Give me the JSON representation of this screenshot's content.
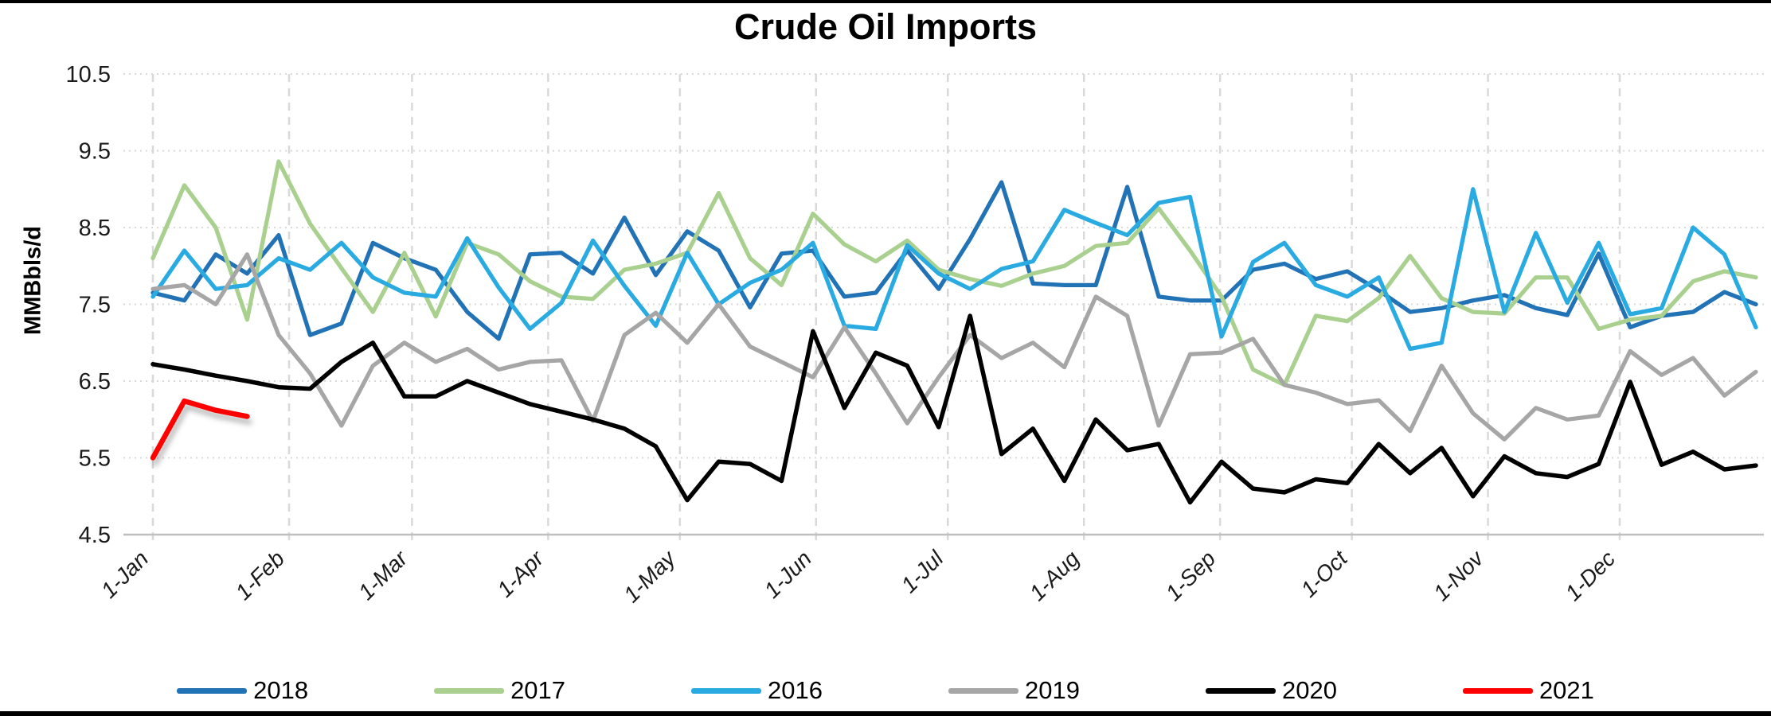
{
  "chart_data": {
    "type": "line",
    "title": "Crude Oil Imports",
    "ylabel": "MMBbls/d",
    "ylim": [
      4.5,
      10.5
    ],
    "yticks": [
      10.5,
      9.5,
      8.5,
      7.5,
      6.5,
      5.5,
      4.5
    ],
    "xticklabels": [
      "1-Jan",
      "1-Feb",
      "1-Mar",
      "1-Apr",
      "1-May",
      "1-Jun",
      "1-Jul",
      "1-Aug",
      "1-Sep",
      "1-Oct",
      "1-Nov",
      "1-Dec"
    ],
    "xtick_days": [
      1,
      32,
      60,
      91,
      121,
      152,
      182,
      213,
      244,
      274,
      305,
      335
    ],
    "grid": true,
    "legend_position": "bottom",
    "points_per_year": 52,
    "x_unit": "weekly",
    "series": [
      {
        "name": "2018",
        "color": "#2272B6",
        "values": [
          7.65,
          7.55,
          8.15,
          7.9,
          8.4,
          7.1,
          7.25,
          8.3,
          8.1,
          7.95,
          7.4,
          7.05,
          8.15,
          8.17,
          7.9,
          8.63,
          7.88,
          8.45,
          8.2,
          7.46,
          8.16,
          8.2,
          7.6,
          7.65,
          8.2,
          7.7,
          8.35,
          9.09,
          7.77,
          7.75,
          7.75,
          9.03,
          7.6,
          7.55,
          7.55,
          7.95,
          8.03,
          7.83,
          7.93,
          7.68,
          7.4,
          7.45,
          7.55,
          7.62,
          7.45,
          7.36,
          8.16,
          7.2,
          7.35,
          7.4,
          7.66,
          7.5
        ]
      },
      {
        "name": "2017",
        "color": "#A9D08E",
        "values": [
          8.1,
          9.05,
          8.5,
          7.3,
          9.36,
          8.55,
          7.97,
          7.4,
          8.17,
          7.34,
          8.3,
          8.15,
          7.8,
          7.6,
          7.57,
          7.95,
          8.03,
          8.17,
          8.95,
          8.1,
          7.75,
          8.68,
          8.28,
          8.06,
          8.33,
          7.95,
          7.83,
          7.74,
          7.9,
          8.0,
          8.26,
          8.3,
          8.75,
          8.2,
          7.6,
          6.65,
          6.45,
          7.35,
          7.28,
          7.58,
          8.13,
          7.58,
          7.4,
          7.38,
          7.85,
          7.85,
          7.18,
          7.3,
          7.35,
          7.8,
          7.93,
          7.85
        ]
      },
      {
        "name": "2016",
        "color": "#29ABE2",
        "values": [
          7.6,
          8.2,
          7.7,
          7.75,
          8.1,
          7.95,
          8.3,
          7.85,
          7.65,
          7.6,
          8.36,
          7.72,
          7.18,
          7.52,
          8.33,
          7.74,
          7.22,
          8.17,
          7.5,
          7.78,
          7.95,
          8.3,
          7.22,
          7.18,
          8.27,
          7.9,
          7.7,
          7.96,
          8.06,
          8.73,
          8.56,
          8.4,
          8.82,
          8.9,
          7.08,
          8.05,
          8.3,
          7.75,
          7.6,
          7.85,
          6.92,
          7.0,
          9.0,
          7.4,
          8.43,
          7.52,
          8.3,
          7.37,
          7.45,
          8.5,
          8.15,
          7.2
        ]
      },
      {
        "name": "2019",
        "color": "#A6A6A6",
        "values": [
          7.7,
          7.75,
          7.5,
          8.15,
          7.1,
          6.6,
          5.92,
          6.7,
          7.0,
          6.75,
          6.92,
          6.65,
          6.75,
          6.77,
          5.98,
          7.1,
          7.39,
          7.0,
          7.5,
          6.95,
          6.75,
          6.55,
          7.2,
          6.6,
          5.95,
          6.55,
          7.1,
          6.8,
          7.0,
          6.68,
          7.6,
          7.35,
          5.92,
          6.85,
          6.87,
          7.05,
          6.45,
          6.35,
          6.2,
          6.25,
          5.85,
          6.7,
          6.08,
          5.74,
          6.15,
          6.0,
          6.05,
          6.89,
          6.58,
          6.8,
          6.31,
          6.62
        ]
      },
      {
        "name": "2020",
        "color": "#000000",
        "values": [
          6.72,
          6.65,
          6.57,
          6.5,
          6.42,
          6.4,
          6.75,
          7.0,
          6.3,
          6.3,
          6.5,
          6.35,
          6.2,
          6.1,
          6.0,
          5.88,
          5.65,
          4.95,
          5.45,
          5.42,
          5.2,
          7.15,
          6.15,
          6.87,
          6.7,
          5.9,
          7.35,
          5.55,
          5.88,
          5.2,
          6.0,
          5.6,
          5.68,
          4.92,
          5.45,
          5.1,
          5.05,
          5.22,
          5.17,
          5.68,
          5.3,
          5.63,
          5.0,
          5.52,
          5.3,
          5.25,
          5.42,
          6.49,
          5.41,
          5.58,
          5.35,
          5.4
        ]
      },
      {
        "name": "2021",
        "color": "#FF0000",
        "values": [
          5.5,
          6.24,
          6.12,
          6.04
        ]
      }
    ]
  }
}
